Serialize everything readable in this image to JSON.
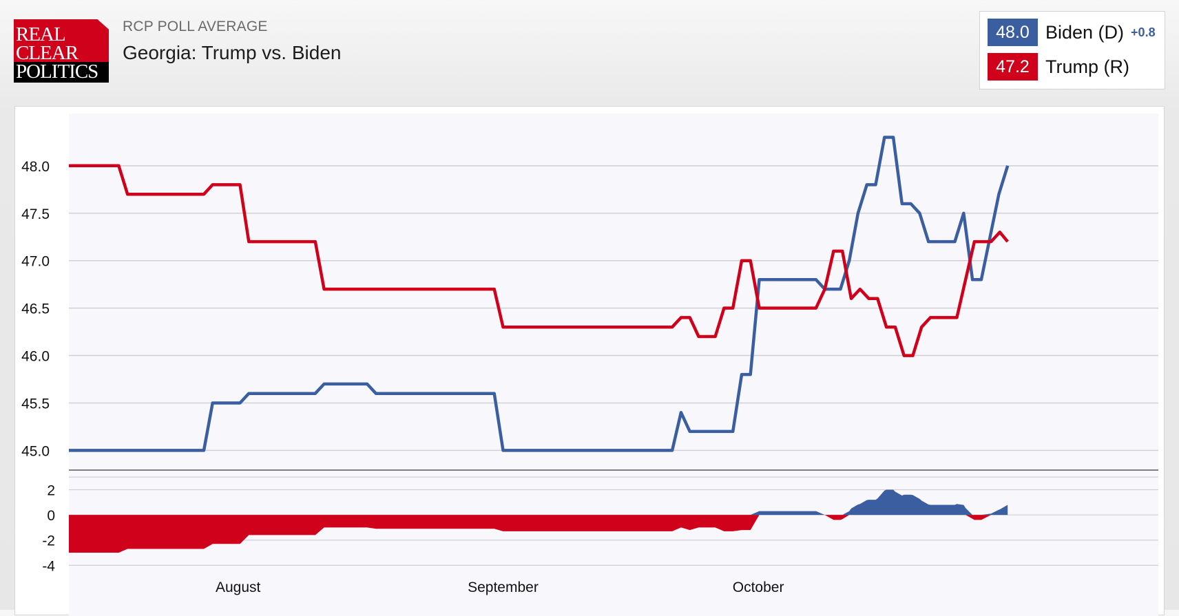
{
  "header": {
    "logo": {
      "line1": "REAL",
      "line2": "CLEAR",
      "line3": "POLITICS"
    },
    "subtitle": "RCP POLL AVERAGE",
    "title": "Georgia: Trump vs. Biden"
  },
  "legend": {
    "items": [
      {
        "value": "48.0",
        "name": "Biden (D)",
        "change": "+0.8",
        "color": "#3b5ea0"
      },
      {
        "value": "47.2",
        "name": "Trump (R)",
        "change": "",
        "color": "#d0021b"
      }
    ]
  },
  "chart_data": {
    "type": "line",
    "x_domain": [
      0,
      98
    ],
    "x_ticks": [
      {
        "label": "August",
        "x": 17.3
      },
      {
        "label": "September",
        "x": 44.4
      },
      {
        "label": "October",
        "x": 70.5
      }
    ],
    "y_ticks": [
      "48.0",
      "47.5",
      "47.0",
      "46.5",
      "46.0",
      "45.5",
      "45.0"
    ],
    "ylim": [
      44.8,
      48.55
    ],
    "spread_ticks": [
      "2",
      "0",
      "-2",
      "-4"
    ],
    "spread_lim": [
      -4.2,
      3.5
    ],
    "grid": true,
    "series": [
      {
        "name": "Biden (D)",
        "color": "#3b5ea0",
        "points": [
          [
            0,
            45.0
          ],
          [
            13.8,
            45.0
          ],
          [
            14.7,
            45.5
          ],
          [
            17.5,
            45.5
          ],
          [
            18.4,
            45.6
          ],
          [
            25.2,
            45.6
          ],
          [
            26.1,
            45.7
          ],
          [
            30.5,
            45.7
          ],
          [
            31.4,
            45.6
          ],
          [
            43.5,
            45.6
          ],
          [
            44.4,
            45.0
          ],
          [
            61.7,
            45.0
          ],
          [
            62.6,
            45.4
          ],
          [
            63.5,
            45.2
          ],
          [
            67.9,
            45.2
          ],
          [
            68.8,
            45.8
          ],
          [
            69.7,
            45.8
          ],
          [
            70.6,
            46.8
          ],
          [
            76.4,
            46.8
          ],
          [
            77.3,
            46.7
          ],
          [
            78.9,
            46.7
          ],
          [
            79.8,
            47.0
          ],
          [
            80.7,
            47.5
          ],
          [
            81.6,
            47.8
          ],
          [
            82.5,
            47.8
          ],
          [
            83.4,
            48.3
          ],
          [
            84.3,
            48.3
          ],
          [
            85.2,
            47.6
          ],
          [
            86.1,
            47.6
          ],
          [
            87.0,
            47.5
          ],
          [
            87.9,
            47.2
          ],
          [
            90.6,
            47.2
          ],
          [
            91.5,
            47.5
          ],
          [
            92.4,
            46.8
          ],
          [
            93.3,
            46.8
          ],
          [
            95.1,
            47.7
          ],
          [
            96.0,
            48.0
          ]
        ]
      },
      {
        "name": "Trump (R)",
        "color": "#d0021b",
        "points": [
          [
            0,
            48.0
          ],
          [
            5.1,
            48.0
          ],
          [
            6.0,
            47.7
          ],
          [
            13.8,
            47.7
          ],
          [
            14.7,
            47.8
          ],
          [
            17.5,
            47.8
          ],
          [
            18.4,
            47.2
          ],
          [
            25.2,
            47.2
          ],
          [
            26.1,
            46.7
          ],
          [
            43.5,
            46.7
          ],
          [
            44.4,
            46.3
          ],
          [
            61.7,
            46.3
          ],
          [
            62.6,
            46.4
          ],
          [
            63.5,
            46.4
          ],
          [
            64.4,
            46.2
          ],
          [
            66.1,
            46.2
          ],
          [
            67.0,
            46.5
          ],
          [
            67.9,
            46.5
          ],
          [
            68.8,
            47.0
          ],
          [
            69.7,
            47.0
          ],
          [
            70.6,
            46.5
          ],
          [
            76.4,
            46.5
          ],
          [
            77.3,
            46.7
          ],
          [
            78.2,
            47.1
          ],
          [
            79.1,
            47.1
          ],
          [
            80.0,
            46.6
          ],
          [
            80.9,
            46.7
          ],
          [
            81.8,
            46.6
          ],
          [
            82.7,
            46.6
          ],
          [
            83.6,
            46.3
          ],
          [
            84.5,
            46.3
          ],
          [
            85.4,
            46.0
          ],
          [
            86.3,
            46.0
          ],
          [
            87.2,
            46.3
          ],
          [
            88.1,
            46.4
          ],
          [
            90.8,
            46.4
          ],
          [
            91.7,
            46.8
          ],
          [
            92.6,
            47.2
          ],
          [
            94.3,
            47.2
          ],
          [
            95.2,
            47.3
          ],
          [
            96.0,
            47.2
          ]
        ]
      }
    ]
  }
}
